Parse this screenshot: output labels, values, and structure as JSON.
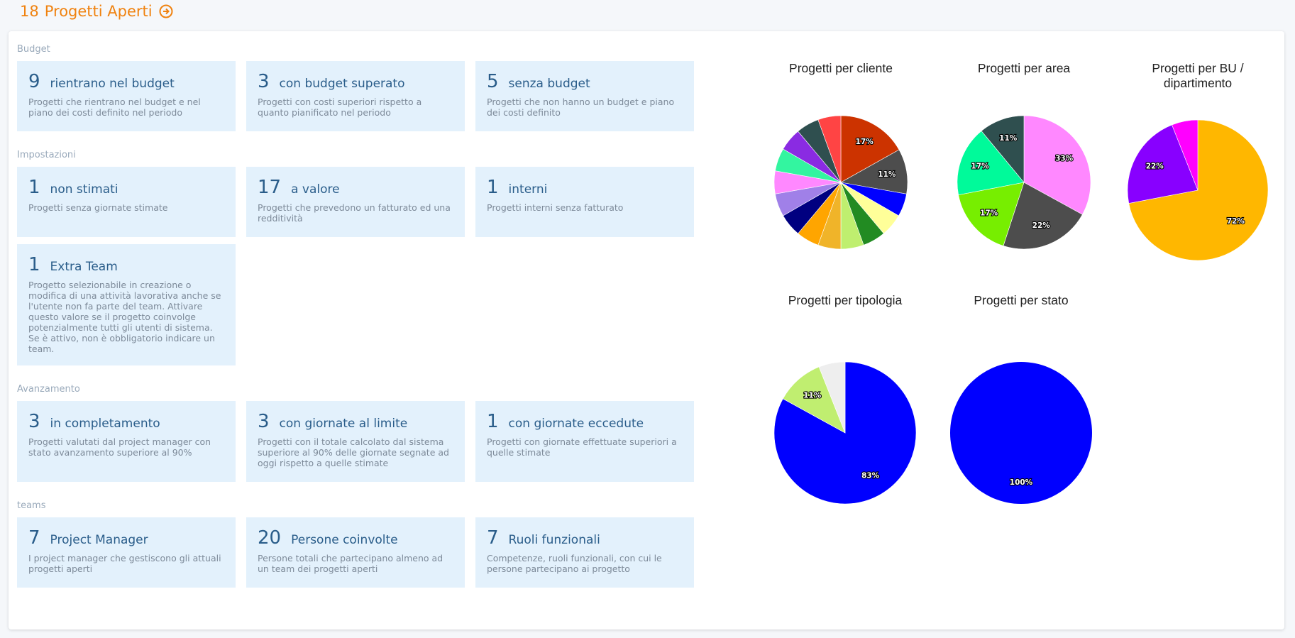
{
  "header": {
    "count": "18",
    "title": "Progetti Aperti"
  },
  "sections": [
    {
      "label": "Budget",
      "cards": [
        {
          "value": 9,
          "label": "rientrano nel budget",
          "description": "Progetti che rientrano nel budget e nel piano dei costi definito nel periodo"
        },
        {
          "value": 3,
          "label": "con budget superato",
          "description": "Progetti con costi superiori rispetto a quanto pianificato nel periodo"
        },
        {
          "value": 5,
          "label": "senza budget",
          "description": "Progetti che non hanno un budget e piano dei costi definito"
        }
      ]
    },
    {
      "label": "Impostazioni",
      "cards": [
        {
          "value": 1,
          "label": "non stimati",
          "description": "Progetti senza giornate stimate"
        },
        {
          "value": 17,
          "label": "a valore",
          "description": "Progetti che prevedono un fatturato ed una redditività"
        },
        {
          "value": 1,
          "label": "interni",
          "description": "Progetti interni senza fatturato"
        },
        {
          "value": 1,
          "label": "Extra Team",
          "description": "Progetto selezionabile in creazione o modifica di una attività lavorativa anche se l'utente non fa parte del team. Attivare questo valore se il progetto coinvolge potenzialmente tutti gli utenti di sistema. Se è attivo, non è obbligatorio indicare un team."
        }
      ]
    },
    {
      "label": "Avanzamento",
      "cards": [
        {
          "value": 3,
          "label": "in completamento",
          "description": "Progetti valutati dal project manager con stato avanzamento superiore al 90%"
        },
        {
          "value": 3,
          "label": "con giornate al limite",
          "description": "Progetti con il totale calcolato dal sistema superiore al 90% delle giornate segnate ad oggi rispetto a quelle stimate"
        },
        {
          "value": 1,
          "label": "con giornate eccedute",
          "description": "Progetti con giornate effettuate superiori a quelle stimate"
        }
      ]
    },
    {
      "label": "teams",
      "cards": [
        {
          "value": 7,
          "label": "Project Manager",
          "description": "I project manager che gestiscono gli attuali progetti aperti"
        },
        {
          "value": 20,
          "label": "Persone coinvolte",
          "description": "Persone totali che partecipano almeno ad un team dei progetti aperti"
        },
        {
          "value": 7,
          "label": "Ruoli funzionali",
          "description": "Competenze, ruoli funzionali, con cui le persone partecipano ai progetto"
        }
      ]
    }
  ],
  "chart_data": [
    {
      "type": "pie",
      "title": "Progetti per cliente",
      "values": [
        17,
        11,
        5.6,
        5.6,
        5.6,
        5.6,
        5.6,
        5.6,
        5.6,
        5.6,
        5.6,
        5.6,
        5.6,
        5.6,
        5.6
      ],
      "value_labels": [
        "17%",
        "11%",
        null,
        null,
        null,
        null,
        null,
        null,
        null,
        null,
        null,
        null,
        null,
        null,
        null
      ],
      "colors": [
        "#cc3300",
        "#4d4d4d",
        "#0000ff",
        "#ffff99",
        "#228b22",
        "#bfef6f",
        "#f0b429",
        "#ffa500",
        "#000080",
        "#a080e8",
        "#ff88ff",
        "#33f5a0",
        "#8a2be2",
        "#2f4f4f",
        "#ff4444"
      ]
    },
    {
      "type": "pie",
      "title": "Progetti per area",
      "values": [
        33,
        22,
        17,
        17,
        11
      ],
      "value_labels": [
        "33%",
        "22%",
        "17%",
        "17%",
        "11%"
      ],
      "colors": [
        "#ff88ff",
        "#4d4d4d",
        "#77ee00",
        "#00fa9a",
        "#2f4f4f"
      ]
    },
    {
      "type": "pie",
      "title": "Progetti per BU / dipartimento",
      "values": [
        72,
        22,
        6
      ],
      "value_labels": [
        "72%",
        "22%",
        null
      ],
      "colors": [
        "#ffb700",
        "#8800ff",
        "#ff00ff"
      ]
    },
    {
      "type": "pie",
      "title": "Progetti per tipologia",
      "values": [
        83,
        11,
        6
      ],
      "value_labels": [
        "83%",
        "11%",
        null
      ],
      "colors": [
        "#0000ff",
        "#c0ee70",
        "#eeeeee"
      ]
    },
    {
      "type": "pie",
      "title": "Progetti per stato",
      "values": [
        100
      ],
      "value_labels": [
        "100%"
      ],
      "colors": [
        "#0000ff"
      ]
    }
  ]
}
